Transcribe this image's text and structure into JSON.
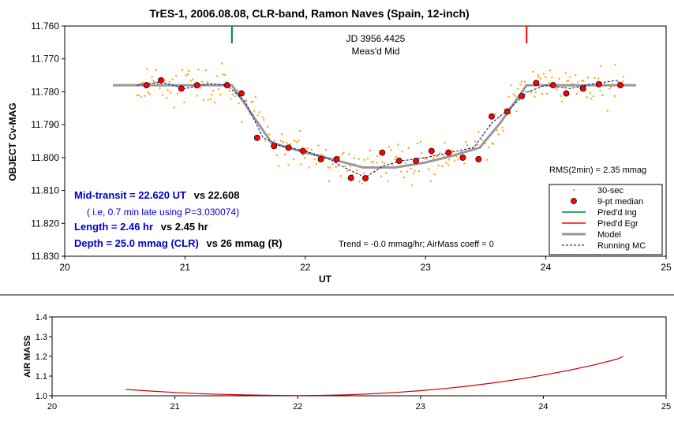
{
  "chart_data": [
    {
      "type": "scatter",
      "title": "TrES-1, 2006.08.08, CLR-band, Ramon Naves (Spain, 12-inch)",
      "xlabel": "UT",
      "ylabel": "OBJECT Cv-MAG",
      "xlim": [
        20,
        25
      ],
      "ylim": [
        11.76,
        11.83
      ],
      "y_inverted": true,
      "x_ticks": [
        "20",
        "21",
        "22",
        "23",
        "24",
        "25"
      ],
      "y_ticks": [
        "11.760",
        "11.770",
        "11.780",
        "11.790",
        "11.800",
        "11.810",
        "11.820",
        "11.830"
      ],
      "grid": false,
      "legend_placement": "bottom-right",
      "legend": [
        {
          "label": "30-sec",
          "color": "#ff9900",
          "kind": "dot"
        },
        {
          "label": "9-pt median",
          "color": "#ff0000",
          "kind": "circle"
        },
        {
          "label": "Pred'd Ing",
          "color": "#008040",
          "kind": "line"
        },
        {
          "label": "Pred'd Egr",
          "color": "#ff0000",
          "kind": "line"
        },
        {
          "label": "Model",
          "color": "#999999",
          "kind": "thick-line"
        },
        {
          "label": "Running MC",
          "color": "#000099",
          "kind": "dashed-line"
        }
      ],
      "colors": {
        "raw": "#ff9900",
        "median": "#ff0000",
        "ingress": "#008040",
        "egress": "#ff0000",
        "model": "#999999",
        "running": "#000099",
        "annotation_blue": "#0000cc"
      },
      "annotations": {
        "jd_line1": "JD 3956.4425",
        "jd_line2": "Meas'd Mid",
        "rms": "RMS(2min) = 2.35 mmag",
        "mid_transit_bold": "Mid-transit = 22.620 UT",
        "mid_transit_rest": "vs 22.608",
        "late_note": "( i.e, 0.7 min late using P=3.030074)",
        "length_bold": "Length = 2.46 hr",
        "length_rest": "vs 2.45 hr",
        "depth_bold": "Depth = 25.0 mmag (CLR)",
        "depth_rest": "vs 26 mmag (R)",
        "trend": "Trend = -0.0 mmag/hr; AirMass coeff = 0"
      },
      "predicted_ingress_ut": 21.39,
      "predicted_egress_ut": 23.84,
      "model": {
        "x": [
          20.4,
          21.39,
          21.72,
          22.0,
          22.2,
          22.48,
          22.75,
          23.0,
          23.2,
          23.45,
          23.62,
          23.84,
          24.75
        ],
        "y": [
          11.778,
          11.778,
          11.7955,
          11.7985,
          11.8003,
          11.803,
          11.803,
          11.8015,
          11.7997,
          11.797,
          11.7895,
          11.778,
          11.778
        ]
      },
      "median_9pt": {
        "x": [
          20.68,
          20.8,
          20.97,
          21.1,
          21.35,
          21.47,
          21.6,
          21.74,
          21.86,
          21.98,
          22.13,
          22.26,
          22.38,
          22.5,
          22.64,
          22.78,
          22.92,
          23.05,
          23.19,
          23.31,
          23.44,
          23.55,
          23.68,
          23.8,
          23.92,
          24.06,
          24.17,
          24.31,
          24.44,
          24.62
        ],
        "y": [
          11.778,
          11.7765,
          11.779,
          11.778,
          11.778,
          11.7805,
          11.794,
          11.7965,
          11.797,
          11.798,
          11.8005,
          11.8005,
          11.8062,
          11.8063,
          11.7985,
          11.801,
          11.801,
          11.798,
          11.7985,
          11.8,
          11.8005,
          11.7875,
          11.786,
          11.7813,
          11.7773,
          11.778,
          11.7805,
          11.779,
          11.7777,
          11.778
        ]
      },
      "running_mc": {
        "x": [
          20.6,
          20.8,
          21.0,
          21.2,
          21.35,
          21.5,
          21.65,
          21.8,
          22.0,
          22.2,
          22.35,
          22.5,
          22.65,
          22.8,
          23.0,
          23.2,
          23.4,
          23.55,
          23.7,
          23.85,
          24.0,
          24.2,
          24.4,
          24.6
        ],
        "y": [
          11.778,
          11.777,
          11.779,
          11.7775,
          11.778,
          11.783,
          11.794,
          11.7965,
          11.798,
          11.8005,
          11.8035,
          11.806,
          11.8025,
          11.801,
          11.8,
          11.7985,
          11.797,
          11.7895,
          11.785,
          11.78,
          11.778,
          11.779,
          11.7775,
          11.7765
        ]
      },
      "raw_30sec": {
        "count": 300,
        "x_range": [
          20.6,
          24.65
        ],
        "scatter_mmag": 3
      }
    },
    {
      "type": "line",
      "xlabel": "",
      "ylabel": "AIR MASS",
      "xlim": [
        20,
        25
      ],
      "ylim": [
        1.0,
        1.4
      ],
      "x_ticks": [
        "20",
        "21",
        "22",
        "23",
        "24",
        "25"
      ],
      "y_ticks": [
        "1.0",
        "1.1",
        "1.2",
        "1.3",
        "1.4"
      ],
      "color": "#cc0000",
      "series": [
        {
          "x": [
            20.6,
            20.8,
            21.0,
            21.2,
            21.4,
            21.6,
            21.8,
            22.0,
            22.2,
            22.4,
            22.6,
            22.8,
            23.0,
            23.2,
            23.4,
            23.6,
            23.8,
            24.0,
            24.2,
            24.4,
            24.6,
            24.65
          ],
          "y": [
            1.032,
            1.024,
            1.017,
            1.011,
            1.007,
            1.004,
            1.002,
            1.001,
            1.002,
            1.005,
            1.01,
            1.017,
            1.026,
            1.037,
            1.05,
            1.066,
            1.084,
            1.105,
            1.128,
            1.155,
            1.186,
            1.2
          ]
        }
      ]
    }
  ]
}
